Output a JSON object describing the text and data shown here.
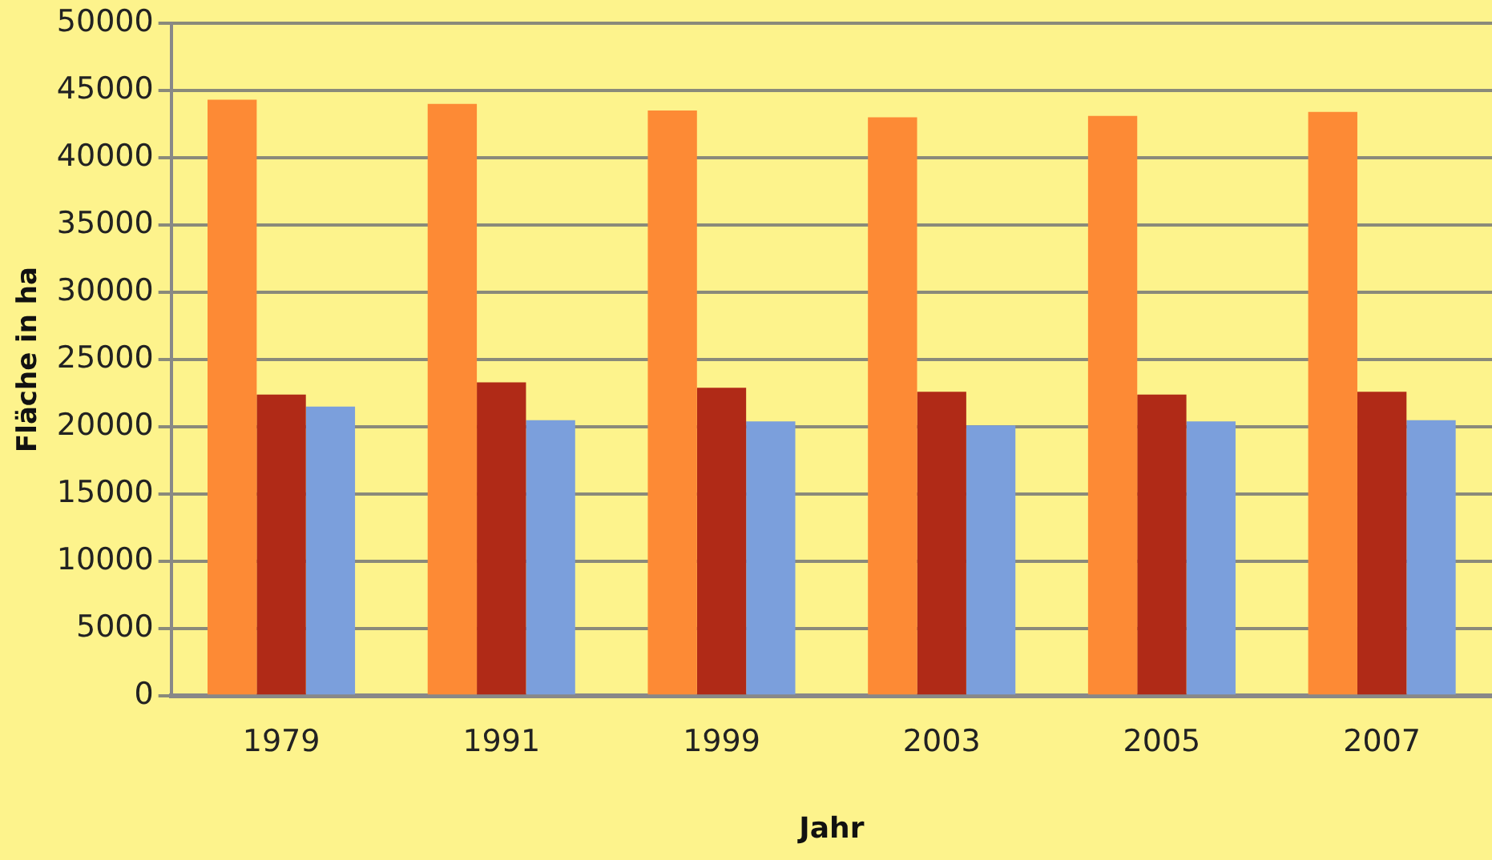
{
  "chart_data": {
    "type": "bar",
    "xlabel": "Jahr",
    "ylabel": "Fläche in ha",
    "categories": [
      "1979",
      "1991",
      "1999",
      "2003",
      "2005",
      "2007"
    ],
    "series": [
      {
        "color": "#fd8a35",
        "values": [
          44300,
          44000,
          43500,
          43000,
          43100,
          43400
        ]
      },
      {
        "color": "#b02a17",
        "values": [
          22400,
          23300,
          22900,
          22600,
          22400,
          22600
        ]
      },
      {
        "color": "#7b9fdc",
        "values": [
          21500,
          20500,
          20400,
          20100,
          20400,
          20500
        ]
      }
    ],
    "ylim": [
      0,
      50000
    ],
    "yticks": [
      0,
      5000,
      10000,
      15000,
      20000,
      25000,
      30000,
      35000,
      40000,
      45000,
      50000
    ],
    "grid": "y",
    "legend": false
  }
}
